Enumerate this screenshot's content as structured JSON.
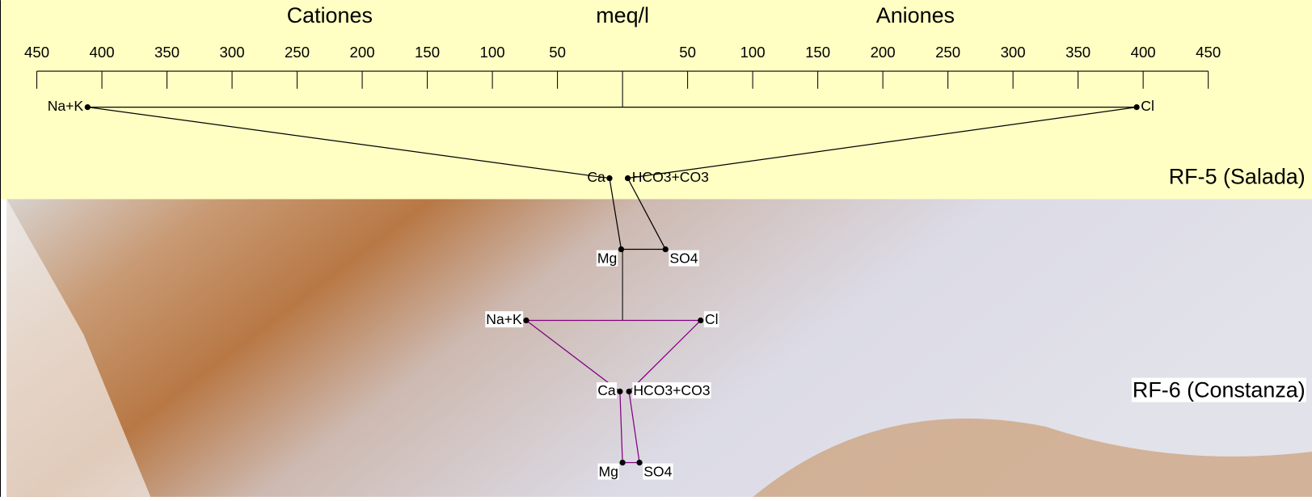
{
  "chart_data": {
    "type": "stiff",
    "title_left": "Cationes",
    "title_center": "meq/l",
    "title_right": "Aniones",
    "xlim": [
      -450,
      450
    ],
    "xticks": [
      {
        "value": -450,
        "label": "450"
      },
      {
        "value": -400,
        "label": "400"
      },
      {
        "value": -350,
        "label": "350"
      },
      {
        "value": -300,
        "label": "300"
      },
      {
        "value": -250,
        "label": "250"
      },
      {
        "value": -200,
        "label": "200"
      },
      {
        "value": -150,
        "label": "150"
      },
      {
        "value": -100,
        "label": "100"
      },
      {
        "value": -50,
        "label": "50"
      },
      0,
      50,
      100,
      150,
      200,
      250,
      300,
      350,
      400,
      450
    ],
    "cations": [
      "Na+K",
      "Ca",
      "Mg"
    ],
    "anions": [
      "Cl",
      "HCO3+CO3",
      "SO4"
    ],
    "series": [
      {
        "name": "RF-5 (Salada)",
        "color": "#000000",
        "cations": [
          411,
          10,
          1
        ],
        "anions": [
          395,
          4,
          33
        ]
      },
      {
        "name": "RF-6 (Constanza)",
        "color": "#800080",
        "cations": [
          74,
          2,
          0
        ],
        "anions": [
          60,
          5,
          13
        ]
      }
    ]
  }
}
